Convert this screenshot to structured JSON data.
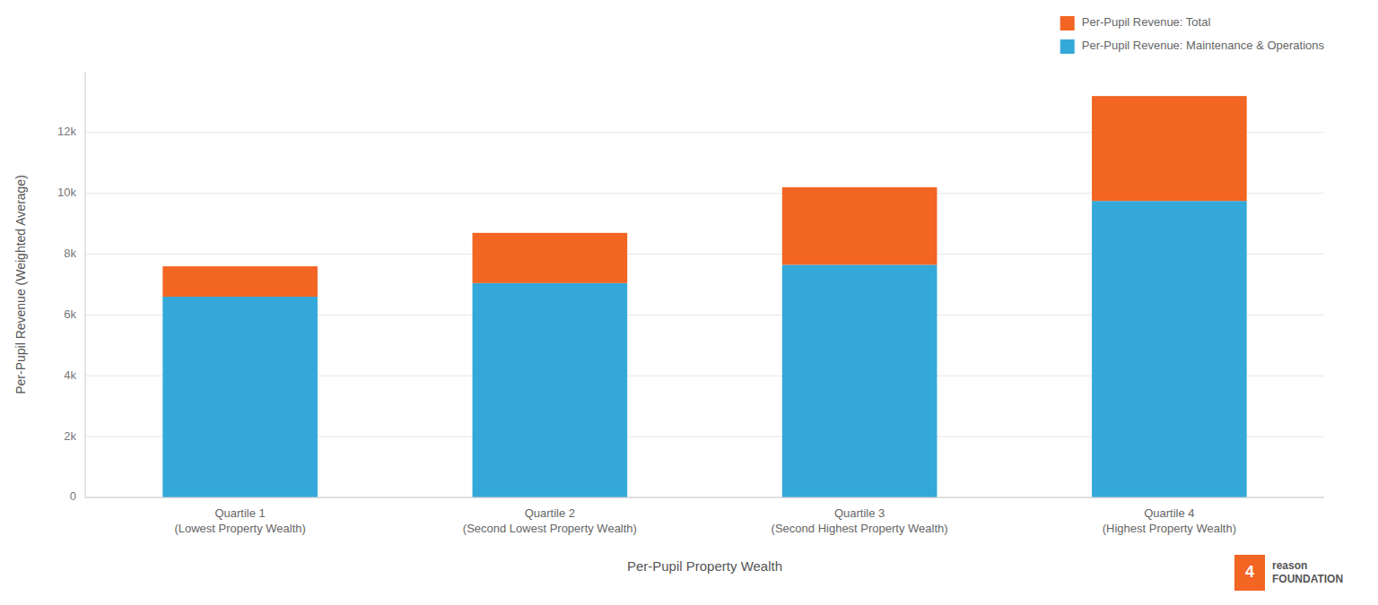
{
  "chart_data": {
    "type": "bar",
    "stacked": true,
    "categories": [
      "Quartile 1\n(Lowest Property Wealth)",
      "Quartile 2\n(Second Lowest Property Wealth)",
      "Quartile 3\n(Second Highest Property Wealth)",
      "Quartile 4\n(Highest Property Wealth)"
    ],
    "series": [
      {
        "name": "Per-Pupil Revenue: Maintenance & Operations",
        "color": "#34a8d8",
        "values": [
          6600,
          7050,
          7650,
          9750
        ]
      },
      {
        "name": "Per-Pupil Revenue: Total",
        "color": "#f26522",
        "values": [
          1000,
          1650,
          2550,
          3450
        ]
      }
    ],
    "x_label": "Per-Pupil Property Wealth",
    "y_label": "Per-Pupil Revenue (Weighted Average)",
    "ylim": [
      0,
      14000
    ],
    "yticks": [
      0,
      {
        "value": 2000,
        "label": "2k"
      },
      {
        "value": 4000,
        "label": "4k"
      },
      {
        "value": 6000,
        "label": "6k"
      },
      {
        "value": 8000,
        "label": "8k"
      },
      {
        "value": 10000,
        "label": "10k"
      },
      {
        "value": 12000,
        "label": "12k"
      }
    ],
    "grid": true,
    "legend": "upper right",
    "annotations": [
      "4",
      "reason\nFOUNDATION"
    ]
  }
}
